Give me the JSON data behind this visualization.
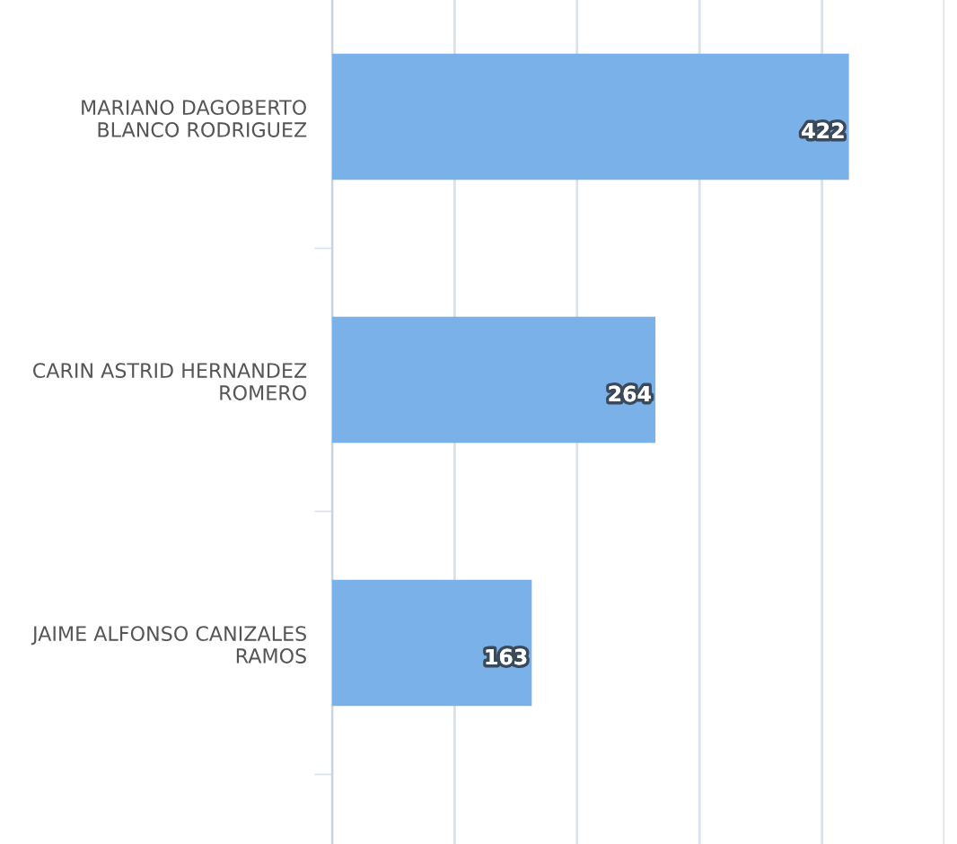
{
  "chart_data": {
    "type": "bar",
    "orientation": "horizontal",
    "categories": [
      "MARIANO DAGOBERTO\nBLANCO RODRIGUEZ",
      "CARIN ASTRID HERNANDEZ\nROMERO",
      "JAIME ALFONSO CANIZALES\nRAMOS"
    ],
    "values": [
      422,
      264,
      163
    ],
    "color": "#7ab1e8",
    "xlim": [
      0,
      500
    ],
    "xticks": [
      {
        "value": 0,
        "label": null
      },
      {
        "value": 100,
        "label": null
      },
      {
        "value": 200,
        "label": null
      },
      {
        "value": 300,
        "label": null
      },
      {
        "value": 400,
        "label": null
      },
      {
        "value": 500,
        "label": null
      }
    ],
    "tick_labels": "y",
    "grid": "x",
    "data_labels": true
  }
}
